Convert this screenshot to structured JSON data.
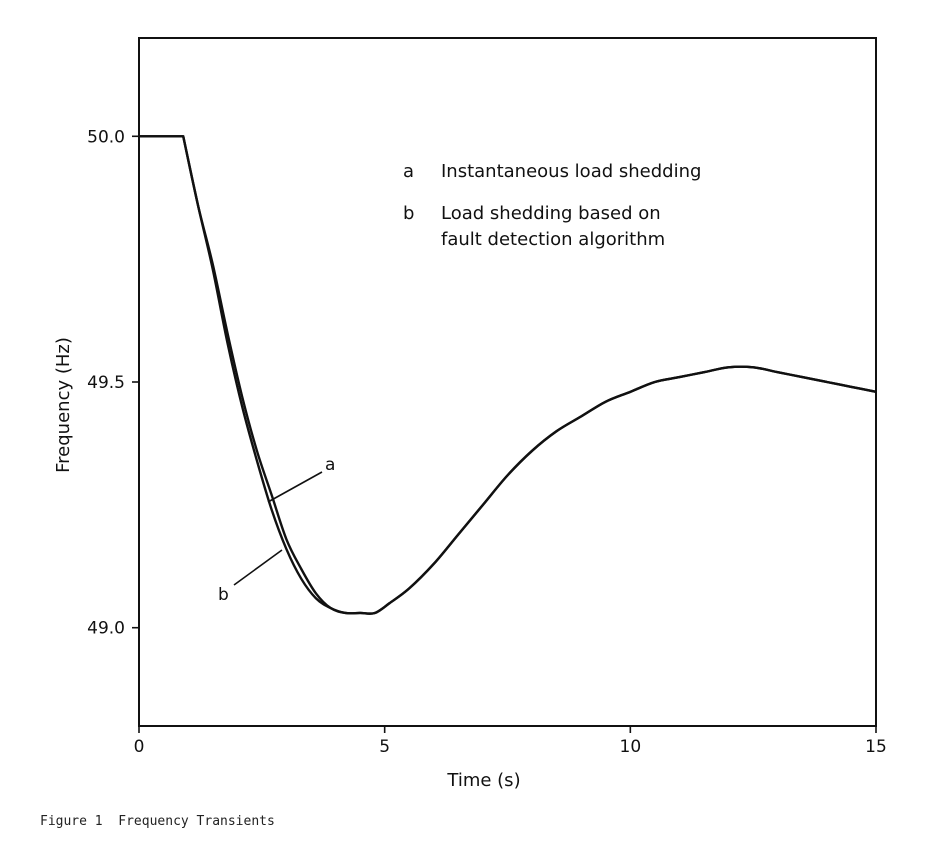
{
  "caption": {
    "number": "Figure 1",
    "title": "Frequency Transients"
  },
  "chart_data": {
    "type": "line",
    "xlabel": "Time (s)",
    "ylabel": "Frequency (Hz)",
    "xlim": [
      0,
      15
    ],
    "ylim": [
      48.8,
      50.2
    ],
    "x_ticks": [
      0,
      5,
      10,
      15
    ],
    "x_tick_labels": [
      "0",
      "5",
      "10",
      "15"
    ],
    "y_ticks": [
      49.0,
      49.5,
      50.0
    ],
    "y_tick_labels": [
      "49.0",
      "49.5",
      "50.0"
    ],
    "grid": false,
    "legend": {
      "placement": "top-right",
      "entries": [
        {
          "key": "a",
          "text_lines": [
            "Instantaneous load shedding"
          ]
        },
        {
          "key": "b",
          "text_lines": [
            "Load shedding based on",
            "fault detection algorithm"
          ]
        }
      ]
    },
    "series": [
      {
        "name": "a",
        "x": [
          0,
          0.9,
          1.2,
          1.5,
          1.8,
          2.1,
          2.4,
          2.7,
          3.0,
          3.3,
          3.6,
          3.9,
          4.2,
          4.5,
          4.8,
          5.1,
          5.5,
          6.0,
          6.5,
          7.0,
          7.5,
          8.0,
          8.5,
          9.0,
          9.5,
          10.0,
          10.5,
          11.0,
          11.5,
          12.0,
          12.5,
          13.0,
          13.5,
          14.0,
          14.5,
          15.0
        ],
        "y": [
          50.0,
          50.0,
          49.86,
          49.74,
          49.6,
          49.47,
          49.36,
          49.27,
          49.18,
          49.12,
          49.07,
          49.04,
          49.03,
          49.03,
          49.03,
          49.05,
          49.08,
          49.13,
          49.19,
          49.25,
          49.31,
          49.36,
          49.4,
          49.43,
          49.46,
          49.48,
          49.5,
          49.51,
          49.52,
          49.53,
          49.53,
          49.52,
          49.51,
          49.5,
          49.49,
          49.48
        ]
      },
      {
        "name": "b",
        "x": [
          0,
          0.9,
          1.2,
          1.5,
          1.8,
          2.1,
          2.4,
          2.7,
          3.0,
          3.3,
          3.6,
          3.9,
          4.2,
          4.5,
          4.8,
          5.1,
          5.5,
          6.0,
          6.5,
          7.0,
          7.5,
          8.0,
          8.5,
          9.0,
          9.5,
          10.0,
          10.5,
          11.0,
          11.5,
          12.0,
          12.5,
          13.0,
          13.5,
          14.0,
          14.5,
          15.0
        ],
        "y": [
          50.0,
          50.0,
          49.86,
          49.73,
          49.58,
          49.45,
          49.34,
          49.24,
          49.16,
          49.1,
          49.06,
          49.04,
          49.03,
          49.03,
          49.03,
          49.05,
          49.08,
          49.13,
          49.19,
          49.25,
          49.31,
          49.36,
          49.4,
          49.43,
          49.46,
          49.48,
          49.5,
          49.51,
          49.52,
          49.53,
          49.53,
          49.52,
          49.51,
          49.5,
          49.49,
          49.48
        ]
      }
    ]
  }
}
